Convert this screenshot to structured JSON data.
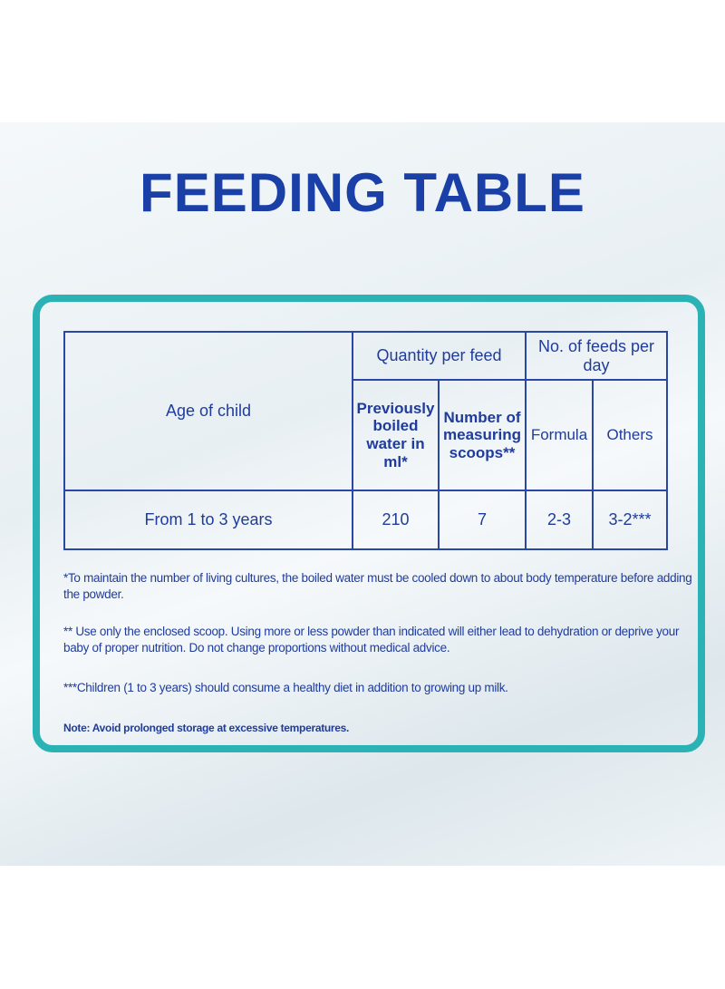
{
  "header": {
    "title": "FEEDING TABLE"
  },
  "table": {
    "headers": {
      "age": "Age of child",
      "quantity": "Quantity per feed",
      "feeds": "No. of feeds per day",
      "water": "Previously boiled water in ml*",
      "scoops": "Number of measuring scoops**",
      "formula": "Formula",
      "others": "Others"
    },
    "rows": [
      [
        "From 1 to 3 years",
        210,
        7,
        "2-3",
        "3-2***"
      ]
    ]
  },
  "notes": [
    "*To maintain the number of living cultures, the boiled water must be cooled down to about body temperature before adding the powder.",
    "** Use only the enclosed scoop. Using more or less powder than indicated will either lead to dehydration or deprive your baby of proper nutrition. Do not change proportions without medical advice.",
    "***Children (1 to 3 years) should consume a healthy diet in addition to growing up milk.",
    "Note: Avoid prolonged storage at excessive temperatures."
  ]
}
